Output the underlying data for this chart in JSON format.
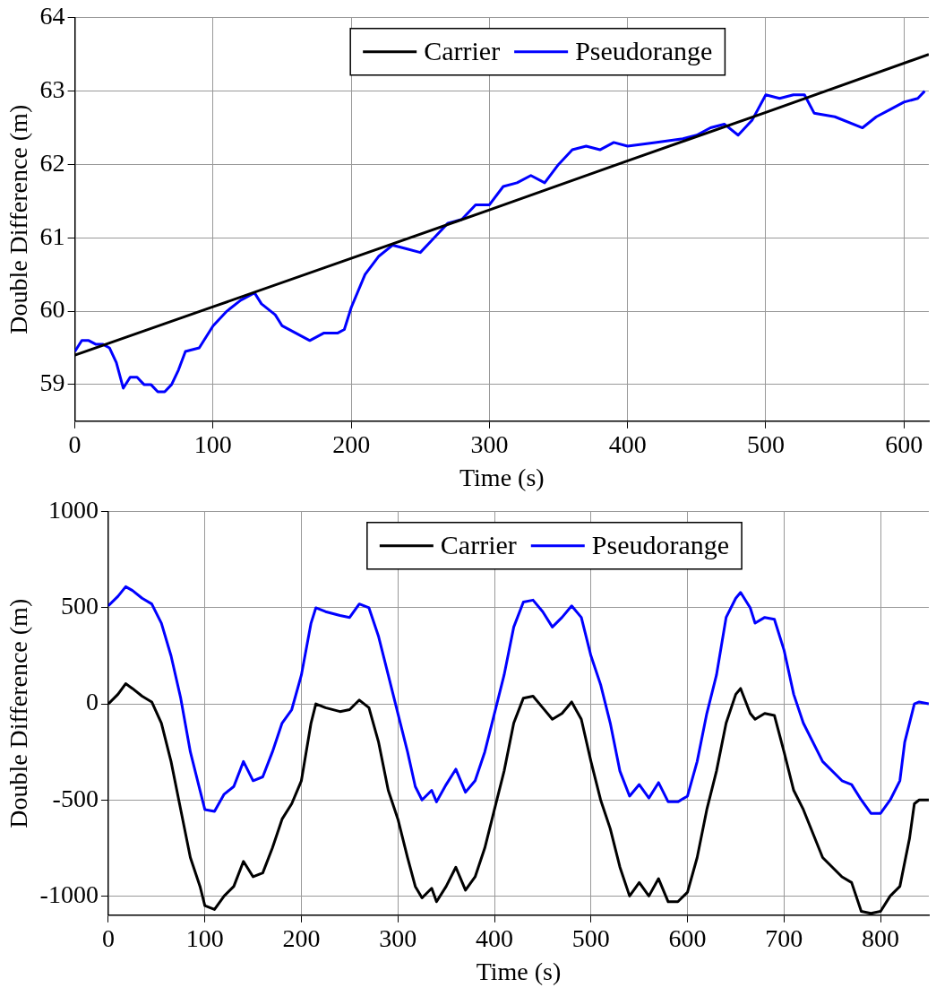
{
  "chart_data": [
    {
      "type": "line",
      "xlabel": "Time (s)",
      "ylabel": "Double Difference (m)",
      "xlim": [
        0,
        618
      ],
      "ylim": [
        58.5,
        64
      ],
      "xticks": [
        0,
        100,
        200,
        300,
        400,
        500,
        600
      ],
      "yticks": [
        59,
        60,
        61,
        62,
        63,
        64
      ],
      "grid": true,
      "legend": "top",
      "line_style": "solid",
      "marker": "none",
      "series": [
        {
          "name": "Carrier",
          "color": "#000000",
          "x": [
            0,
            100,
            200,
            300,
            400,
            500,
            618
          ],
          "values": [
            59.4,
            60.06,
            60.72,
            61.38,
            62.05,
            62.71,
            63.5
          ]
        },
        {
          "name": "Pseudorange",
          "color": "#0000ff",
          "x": [
            0,
            5,
            10,
            15,
            20,
            25,
            30,
            35,
            40,
            45,
            50,
            55,
            60,
            65,
            70,
            75,
            80,
            90,
            100,
            110,
            120,
            130,
            135,
            145,
            150,
            160,
            170,
            180,
            190,
            195,
            200,
            210,
            220,
            230,
            240,
            250,
            260,
            270,
            280,
            290,
            300,
            310,
            320,
            330,
            340,
            350,
            360,
            370,
            380,
            390,
            400,
            420,
            440,
            450,
            460,
            470,
            480,
            490,
            500,
            510,
            520,
            528,
            535,
            550,
            570,
            580,
            590,
            600,
            610,
            615
          ],
          "values": [
            59.45,
            59.6,
            59.6,
            59.55,
            59.55,
            59.5,
            59.3,
            58.95,
            59.1,
            59.1,
            59.0,
            59.0,
            58.9,
            58.9,
            59.0,
            59.2,
            59.45,
            59.5,
            59.8,
            60.0,
            60.15,
            60.25,
            60.1,
            59.95,
            59.8,
            59.7,
            59.6,
            59.7,
            59.7,
            59.75,
            60.05,
            60.5,
            60.75,
            60.9,
            60.85,
            60.8,
            61.0,
            61.2,
            61.25,
            61.45,
            61.45,
            61.7,
            61.75,
            61.85,
            61.75,
            62.0,
            62.2,
            62.25,
            62.2,
            62.3,
            62.25,
            62.3,
            62.35,
            62.4,
            62.5,
            62.55,
            62.4,
            62.6,
            62.95,
            62.9,
            62.95,
            62.95,
            62.7,
            62.65,
            62.5,
            62.65,
            62.75,
            62.85,
            62.9,
            63.0
          ]
        }
      ]
    },
    {
      "type": "line",
      "xlabel": "Time (s)",
      "ylabel": "Double Difference (m)",
      "xlim": [
        0,
        850
      ],
      "ylim": [
        -1100,
        1000
      ],
      "xticks": [
        0,
        100,
        200,
        300,
        400,
        500,
        600,
        700,
        800
      ],
      "yticks": [
        -1000,
        -500,
        0,
        500,
        1000
      ],
      "grid": true,
      "legend": "top",
      "line_style": "solid",
      "marker": "none",
      "series": [
        {
          "name": "Carrier",
          "color": "#000000",
          "x": [
            0,
            10,
            18,
            25,
            35,
            45,
            55,
            65,
            75,
            85,
            95,
            100,
            110,
            120,
            130,
            140,
            150,
            160,
            170,
            180,
            190,
            200,
            210,
            215,
            225,
            240,
            250,
            260,
            270,
            280,
            290,
            300,
            310,
            318,
            325,
            335,
            340,
            350,
            360,
            370,
            380,
            390,
            400,
            410,
            420,
            430,
            440,
            450,
            460,
            470,
            480,
            490,
            500,
            510,
            520,
            530,
            540,
            550,
            560,
            570,
            580,
            590,
            600,
            610,
            620,
            630,
            640,
            650,
            655,
            665,
            670,
            680,
            690,
            700,
            710,
            720,
            740,
            760,
            770,
            780,
            790,
            800,
            810,
            820,
            830,
            835,
            840,
            850
          ],
          "values": [
            0,
            50,
            105,
            80,
            40,
            10,
            -100,
            -300,
            -550,
            -800,
            -950,
            -1050,
            -1070,
            -1000,
            -950,
            -820,
            -900,
            -880,
            -750,
            -600,
            -520,
            -400,
            -100,
            0,
            -20,
            -40,
            -30,
            20,
            -20,
            -200,
            -450,
            -600,
            -800,
            -950,
            -1010,
            -960,
            -1030,
            -950,
            -850,
            -970,
            -900,
            -750,
            -550,
            -350,
            -100,
            30,
            40,
            -20,
            -80,
            -50,
            10,
            -80,
            -300,
            -500,
            -650,
            -850,
            -1000,
            -930,
            -1000,
            -910,
            -1030,
            -1030,
            -980,
            -800,
            -550,
            -350,
            -100,
            50,
            80,
            -50,
            -80,
            -50,
            -60,
            -250,
            -450,
            -550,
            -800,
            -900,
            -930,
            -1080,
            -1090,
            -1080,
            -1000,
            -950,
            -700,
            -520,
            -500,
            -500
          ]
        },
        {
          "name": "Pseudorange",
          "color": "#0000ff",
          "x": [
            0,
            10,
            18,
            25,
            35,
            45,
            55,
            65,
            75,
            85,
            95,
            100,
            110,
            120,
            130,
            140,
            150,
            160,
            170,
            180,
            190,
            200,
            210,
            215,
            225,
            240,
            250,
            260,
            270,
            280,
            290,
            300,
            310,
            318,
            325,
            335,
            340,
            350,
            360,
            370,
            380,
            390,
            400,
            410,
            420,
            430,
            440,
            450,
            460,
            470,
            480,
            490,
            500,
            510,
            520,
            530,
            540,
            550,
            560,
            570,
            580,
            590,
            600,
            610,
            620,
            630,
            640,
            650,
            655,
            665,
            670,
            680,
            690,
            700,
            710,
            720,
            740,
            760,
            770,
            780,
            790,
            800,
            810,
            820,
            825,
            835,
            840,
            850
          ],
          "values": [
            510,
            560,
            610,
            590,
            550,
            520,
            420,
            250,
            30,
            -250,
            -450,
            -550,
            -560,
            -470,
            -430,
            -300,
            -400,
            -380,
            -250,
            -100,
            -30,
            150,
            420,
            500,
            480,
            460,
            450,
            520,
            500,
            350,
            150,
            -50,
            -250,
            -430,
            -500,
            -450,
            -510,
            -420,
            -340,
            -460,
            -400,
            -250,
            -50,
            150,
            400,
            530,
            540,
            480,
            400,
            450,
            510,
            450,
            250,
            100,
            -100,
            -350,
            -480,
            -420,
            -490,
            -410,
            -510,
            -510,
            -480,
            -300,
            -50,
            150,
            450,
            550,
            580,
            500,
            420,
            450,
            440,
            280,
            50,
            -100,
            -300,
            -400,
            -420,
            -500,
            -570,
            -570,
            -500,
            -400,
            -200,
            0,
            10,
            0
          ]
        }
      ]
    }
  ]
}
